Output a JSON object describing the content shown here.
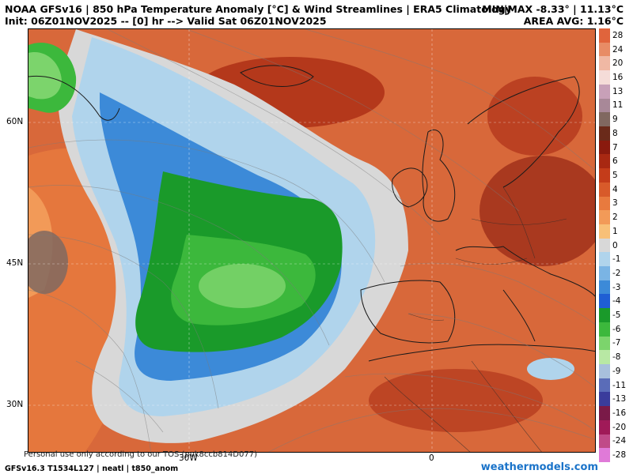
{
  "header": {
    "title_line1": "NOAA GFSv16 | 850 hPa Temperature Anomaly [°C] & Wind Streamlines | ERA5 Climatology",
    "title_line2": "Init: 06Z01NOV2025 -- [0] hr --> Valid Sat 06Z01NOV2025",
    "minmax": "MIN|MAX -8.33° | 11.13°C",
    "area_avg": "AREA AVG: 1.16°C"
  },
  "axes": {
    "lat_labels": [
      "60N",
      "45N",
      "30N"
    ],
    "lon_labels": [
      "30W",
      "0"
    ]
  },
  "legend": {
    "labels": [
      "28",
      "24",
      "20",
      "16",
      "13",
      "11",
      "9",
      "8",
      "7",
      "6",
      "5",
      "4",
      "3",
      "2",
      "1",
      "0",
      "-1",
      "-2",
      "-3",
      "-4",
      "-5",
      "-6",
      "-7",
      "-8",
      "-9",
      "-11",
      "-13",
      "-16",
      "-20",
      "-24",
      "-28"
    ],
    "colors": [
      "#e0643c",
      "#e88c66",
      "#f0b8a4",
      "#f5dcd8",
      "#c8a0b8",
      "#a88898",
      "#806860",
      "#6a2a1a",
      "#8a1a0e",
      "#a82812",
      "#c43c1a",
      "#d85a2a",
      "#e87a3e",
      "#f29a58",
      "#f8c078",
      "#d8d8d8",
      "#b0d4ec",
      "#7ab4e4",
      "#3c8ad8",
      "#1f5ed4",
      "#1a9a2a",
      "#3cb83c",
      "#7cd46c",
      "#b8e8a4",
      "#a8c0dc",
      "#5a6cb8",
      "#3a3c9c",
      "#7a1a48",
      "#a01a58",
      "#c04a88",
      "#e07ad8"
    ]
  },
  "footer": {
    "model_info": "GFSv16.3 T1534L127 | neatl | t850_anom",
    "tos": "Personal use only according to our TOS (pvk8ccb814D077)",
    "brand": "weathermodels.com"
  }
}
